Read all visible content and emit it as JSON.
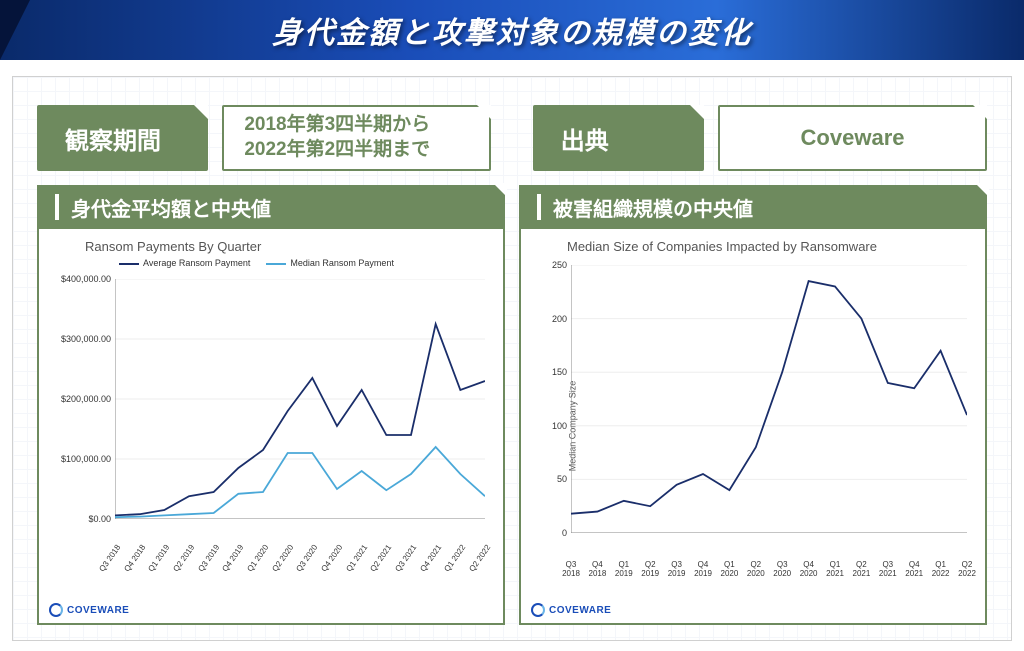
{
  "header": {
    "title": "身代金額と攻撃対象の規模の変化"
  },
  "info": {
    "period_label": "観察期間",
    "period_line1": "2018年第3四半期から",
    "period_line2": "2022年第2四半期まで",
    "source_label": "出典",
    "source_value": "Coveware"
  },
  "left_section": {
    "heading": "身代金平均額と中央値",
    "chart": {
      "type": "line",
      "title": "Ransom Payments By Quarter",
      "legend": [
        {
          "label": "Average Ransom Payment",
          "color": "#1a2e6a"
        },
        {
          "label": "Median Ransom Payment",
          "color": "#4aa8d8"
        }
      ],
      "x_labels": [
        "Q3 2018",
        "Q4 2018",
        "Q1 2019",
        "Q2 2019",
        "Q3 2019",
        "Q4 2019",
        "Q1 2020",
        "Q2 2020",
        "Q3 2020",
        "Q4 2020",
        "Q1 2021",
        "Q2 2021",
        "Q3 2021",
        "Q4 2021",
        "Q1 2022",
        "Q2 2022"
      ],
      "y_ticks": [
        "$0.00",
        "$100,000.00",
        "$200,000.00",
        "$300,000.00",
        "$400,000.00"
      ],
      "ylim": [
        0,
        400000
      ],
      "series": [
        {
          "color": "#1a2e6a",
          "values": [
            6000,
            8000,
            15000,
            38000,
            45000,
            85000,
            115000,
            180000,
            235000,
            155000,
            215000,
            140000,
            140000,
            325000,
            215000,
            230000
          ]
        },
        {
          "color": "#4aa8d8",
          "values": [
            3000,
            4000,
            6000,
            8000,
            10000,
            42000,
            45000,
            110000,
            110000,
            50000,
            80000,
            48000,
            75000,
            120000,
            75000,
            38000
          ]
        }
      ],
      "bg": "#ffffff",
      "grid_color": "#eeeeee",
      "axis_color": "#888888",
      "title_fontsize": 13,
      "tick_fontsize": 9
    },
    "brand": "COVEWARE"
  },
  "right_section": {
    "heading": "被害組織規模の中央値",
    "chart": {
      "type": "line",
      "title": "Median Size of Companies Impacted by Ransomware",
      "y_axis_label": "Median Company Size",
      "x_labels": [
        "Q3 2018",
        "Q4 2018",
        "Q1 2019",
        "Q2 2019",
        "Q3 2019",
        "Q4 2019",
        "Q1 2020",
        "Q2 2020",
        "Q3 2020",
        "Q4 2020",
        "Q1 2021",
        "Q2 2021",
        "Q3 2021",
        "Q4 2021",
        "Q1 2022",
        "Q2 2022"
      ],
      "y_ticks": [
        "0",
        "50",
        "100",
        "150",
        "200",
        "250"
      ],
      "ylim": [
        0,
        250
      ],
      "series": [
        {
          "color": "#1a2e6a",
          "values": [
            18,
            20,
            30,
            25,
            45,
            55,
            40,
            80,
            150,
            235,
            230,
            200,
            140,
            135,
            170,
            110
          ]
        }
      ],
      "bg": "#ffffff",
      "grid_color": "#eeeeee",
      "axis_color": "#888888",
      "title_fontsize": 13,
      "tick_fontsize": 9
    },
    "brand": "COVEWARE"
  },
  "layout": {
    "left_col_w": 468,
    "right_col_w": 468,
    "info_pill_period_label_w": 176,
    "info_pill_period_val_w": 278,
    "info_pill_source_label_w": 176,
    "info_pill_source_val_w": 278
  },
  "colors": {
    "accent_green": "#6e8a5e",
    "header_blue_a": "#0a2a6a",
    "header_blue_b": "#1a4db8"
  }
}
